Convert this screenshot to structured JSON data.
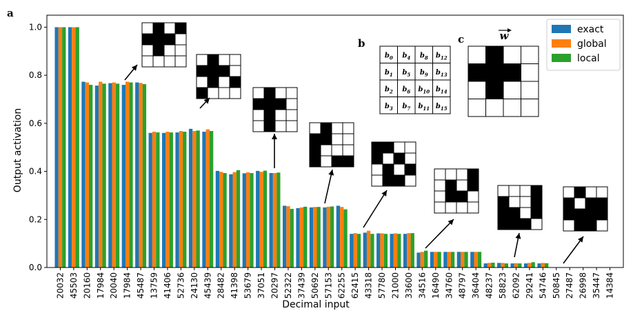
{
  "chart_data": {
    "type": "bar",
    "xlabel": "Decimal input",
    "ylabel": "Output activation",
    "ylim": [
      0,
      1.05
    ],
    "yticks": [
      "0.0",
      "0.2",
      "0.4",
      "0.6",
      "0.8",
      "1.0"
    ],
    "categories": [
      "20032",
      "45503",
      "20160",
      "17984",
      "20040",
      "17984",
      "45487",
      "13759",
      "41406",
      "52736",
      "24130",
      "45439",
      "28482",
      "41398",
      "53679",
      "37051",
      "20297",
      "52322",
      "37439",
      "50692",
      "57153",
      "62255",
      "62415",
      "43318",
      "57780",
      "21000",
      "33600",
      "34516",
      "16490",
      "34760",
      "48797",
      "36404",
      "48237",
      "58823",
      "62092",
      "29241",
      "54746",
      "50845",
      "27487",
      "26998",
      "35447",
      "14384"
    ],
    "series": [
      {
        "name": "exact",
        "color": "#1f77b4",
        "values": [
          1.0,
          1.0,
          0.773,
          0.757,
          0.767,
          0.76,
          0.77,
          0.56,
          0.56,
          0.562,
          0.577,
          0.565,
          0.402,
          0.388,
          0.392,
          0.402,
          0.393,
          0.257,
          0.247,
          0.25,
          0.25,
          0.257,
          0.14,
          0.145,
          0.142,
          0.14,
          0.14,
          0.062,
          0.065,
          0.065,
          0.065,
          0.065,
          0.017,
          0.019,
          0.017,
          0.017,
          0.017,
          0.001,
          0.001,
          0.001,
          0.001,
          0.001
        ]
      },
      {
        "name": "global",
        "color": "#ff7f0e",
        "values": [
          1.0,
          1.0,
          0.77,
          0.773,
          0.77,
          0.773,
          0.768,
          0.565,
          0.565,
          0.568,
          0.568,
          0.575,
          0.398,
          0.397,
          0.396,
          0.398,
          0.393,
          0.255,
          0.25,
          0.252,
          0.253,
          0.252,
          0.143,
          0.153,
          0.142,
          0.142,
          0.143,
          0.065,
          0.065,
          0.065,
          0.065,
          0.065,
          0.019,
          0.019,
          0.018,
          0.019,
          0.019,
          0.001,
          0.001,
          0.001,
          0.001,
          0.001
        ]
      },
      {
        "name": "local",
        "color": "#2ca02c",
        "values": [
          1.0,
          1.0,
          0.76,
          0.765,
          0.765,
          0.77,
          0.763,
          0.562,
          0.562,
          0.565,
          0.57,
          0.568,
          0.393,
          0.405,
          0.393,
          0.403,
          0.395,
          0.244,
          0.253,
          0.252,
          0.254,
          0.242,
          0.14,
          0.14,
          0.14,
          0.14,
          0.143,
          0.07,
          0.065,
          0.065,
          0.065,
          0.065,
          0.02,
          0.017,
          0.017,
          0.022,
          0.018,
          0.001,
          0.001,
          0.001,
          0.001,
          0.001
        ]
      }
    ],
    "legend_position": "top-right",
    "grid": false
  },
  "panels": {
    "a": "a",
    "b": "b",
    "c": "c"
  },
  "matrix_b": [
    [
      [
        "b",
        "0"
      ],
      [
        "b",
        "4"
      ],
      [
        "b",
        "8"
      ],
      [
        "b",
        "12"
      ]
    ],
    [
      [
        "b",
        "1"
      ],
      [
        "b",
        "5"
      ],
      [
        "b",
        "9"
      ],
      [
        "b",
        "13"
      ]
    ],
    [
      [
        "b",
        "2"
      ],
      [
        "b",
        "6"
      ],
      [
        "b",
        "10"
      ],
      [
        "b",
        "14"
      ]
    ],
    [
      [
        "b",
        "3"
      ],
      [
        "b",
        "7"
      ],
      [
        "b",
        "11"
      ],
      [
        "b",
        "15"
      ]
    ]
  ],
  "weight_label": "w",
  "weight_grid": [
    [
      0,
      1,
      0,
      0
    ],
    [
      1,
      1,
      1,
      0
    ],
    [
      0,
      1,
      0,
      0
    ],
    [
      0,
      0,
      0,
      0
    ]
  ],
  "pattern_grids": [
    [
      [
        0,
        1,
        0,
        1
      ],
      [
        1,
        1,
        1,
        0
      ],
      [
        0,
        1,
        0,
        0
      ],
      [
        0,
        0,
        0,
        0
      ]
    ],
    [
      [
        0,
        1,
        0,
        0
      ],
      [
        1,
        1,
        1,
        0
      ],
      [
        0,
        1,
        0,
        1
      ],
      [
        1,
        0,
        0,
        0
      ]
    ],
    [
      [
        0,
        1,
        0,
        0
      ],
      [
        1,
        1,
        1,
        0
      ],
      [
        0,
        1,
        0,
        0
      ],
      [
        0,
        1,
        0,
        0
      ]
    ],
    [
      [
        0,
        1,
        0,
        0
      ],
      [
        1,
        1,
        0,
        0
      ],
      [
        1,
        0,
        0,
        0
      ],
      [
        1,
        0,
        1,
        1
      ]
    ],
    [
      [
        1,
        1,
        0,
        0
      ],
      [
        1,
        0,
        1,
        0
      ],
      [
        0,
        1,
        0,
        1
      ],
      [
        0,
        1,
        1,
        0
      ]
    ],
    [
      [
        0,
        0,
        0,
        1
      ],
      [
        0,
        1,
        0,
        1
      ],
      [
        0,
        1,
        1,
        0
      ],
      [
        0,
        0,
        0,
        0
      ]
    ],
    [
      [
        0,
        0,
        0,
        1
      ],
      [
        1,
        0,
        0,
        1
      ],
      [
        1,
        1,
        0,
        1
      ],
      [
        1,
        1,
        1,
        0
      ]
    ],
    [
      [
        0,
        1,
        0,
        0
      ],
      [
        1,
        0,
        1,
        1
      ],
      [
        1,
        1,
        1,
        1
      ],
      [
        0,
        1,
        1,
        0
      ]
    ]
  ]
}
